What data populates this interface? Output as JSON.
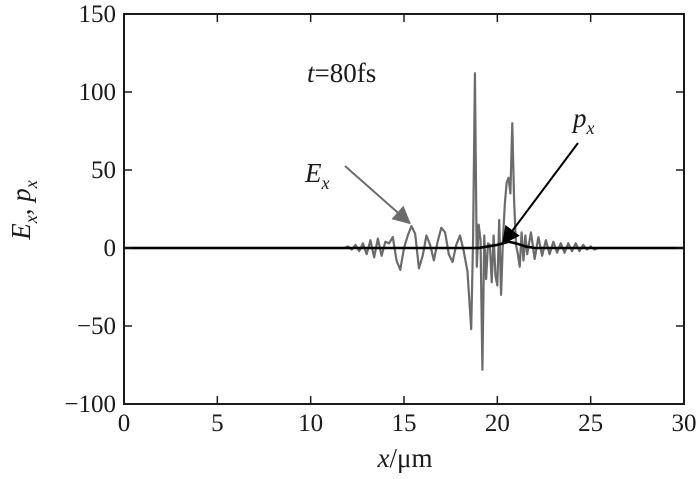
{
  "chart_data": {
    "type": "line",
    "title": "",
    "annotation_time": "t=80fs",
    "annotation_time_parts": {
      "variable": "t",
      "value": "=80fs"
    },
    "xlabel": "x/μm",
    "xlabel_parts": {
      "variable": "x",
      "unit": "/μm"
    },
    "ylabel": "Ex, px",
    "ylabel_parts": {
      "e": "E",
      "e_sub": "x",
      "sep": ", ",
      "p": "p",
      "p_sub": "x"
    },
    "xlim": [
      0,
      30
    ],
    "ylim": [
      -100,
      150
    ],
    "x_ticks": [
      0,
      5,
      10,
      15,
      20,
      25,
      30
    ],
    "y_ticks": [
      -100,
      -50,
      0,
      50,
      100,
      150
    ],
    "x_tick_labels": [
      "0",
      "5",
      "10",
      "15",
      "20",
      "25",
      "30"
    ],
    "y_tick_labels": [
      "−100",
      "−50",
      "0",
      "50",
      "100",
      "150"
    ],
    "grid": false,
    "axis_color": "#1a1a1a",
    "series": [
      {
        "name": "Ex",
        "label_parts": {
          "base": "E",
          "sub": "x"
        },
        "color": "#6b6b6b",
        "arrow_target": [
          15.3,
          16
        ],
        "x": [
          0,
          11.8,
          12.0,
          12.2,
          12.4,
          12.6,
          12.8,
          13.0,
          13.2,
          13.4,
          13.6,
          13.8,
          14.0,
          14.2,
          14.4,
          14.6,
          14.8,
          15.0,
          15.2,
          15.4,
          15.6,
          15.8,
          16.0,
          16.2,
          16.4,
          16.6,
          16.8,
          17.0,
          17.2,
          17.4,
          17.6,
          17.8,
          18.0,
          18.2,
          18.4,
          18.6,
          18.7,
          18.8,
          18.9,
          19.0,
          19.1,
          19.2,
          19.3,
          19.4,
          19.5,
          19.6,
          19.7,
          19.8,
          19.9,
          20.0,
          20.1,
          20.2,
          20.3,
          20.4,
          20.5,
          20.6,
          20.7,
          20.8,
          20.9,
          21.0,
          21.1,
          21.2,
          21.3,
          21.4,
          21.5,
          21.6,
          21.8,
          22.0,
          22.2,
          22.4,
          22.6,
          22.8,
          23.0,
          23.2,
          23.4,
          23.6,
          23.8,
          24.0,
          24.2,
          24.4,
          24.6,
          24.8,
          25.0,
          25.2,
          25.4,
          30
        ],
        "y": [
          0,
          0,
          1,
          -1,
          2,
          -2,
          3,
          -4,
          5,
          -6,
          6,
          -5,
          4,
          3,
          7,
          -8,
          -14,
          0,
          8,
          14,
          9,
          -13,
          -5,
          8,
          2,
          -8,
          4,
          13,
          10,
          -4,
          -9,
          2,
          8,
          -2,
          -15,
          -52,
          5,
          112,
          -12,
          15,
          5,
          -78,
          8,
          -20,
          3,
          2,
          -22,
          8,
          -18,
          -24,
          18,
          -30,
          5,
          28,
          42,
          45,
          35,
          80,
          30,
          2,
          -4,
          -12,
          10,
          -8,
          8,
          -4,
          10,
          -7,
          7,
          -5,
          5,
          -4,
          4,
          -3,
          3,
          -3,
          3,
          -2,
          3,
          -2,
          2,
          -1,
          1,
          -1,
          0,
          0
        ]
      },
      {
        "name": "px",
        "label_parts": {
          "base": "p",
          "sub": "x"
        },
        "color": "#000000",
        "arrow_target": [
          20.3,
          3
        ],
        "x": [
          0,
          18.5,
          19.0,
          19.5,
          20.0,
          20.3,
          20.6,
          21.0,
          21.5,
          22.0,
          30
        ],
        "y": [
          0,
          0,
          0,
          1,
          2,
          3,
          4,
          3,
          1,
          0,
          0
        ]
      }
    ]
  }
}
